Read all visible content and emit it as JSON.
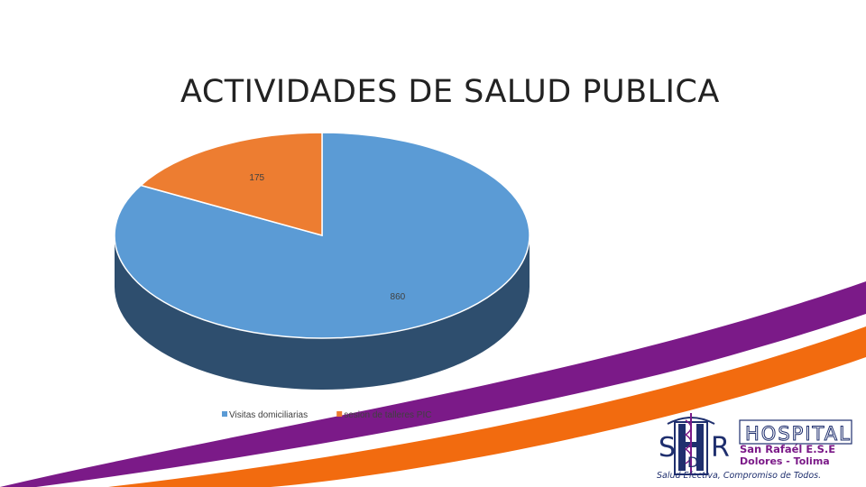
{
  "slide": {
    "title": "ACTIVIDADES DE SALUD PUBLICA"
  },
  "chart_data": {
    "type": "pie",
    "title": "ACTIVIDADES DE SALUD PUBLICA",
    "style": "3d",
    "categories": [
      "Visitas domiciliarias",
      "sesion de talleres PIC"
    ],
    "values": [
      860,
      175
    ],
    "colors": [
      "#5B9BD5",
      "#ED7D31"
    ],
    "side_colors": [
      "#2E4E6E",
      "#9A4C16"
    ],
    "data_labels": [
      "860",
      "175"
    ],
    "legend_position": "bottom"
  },
  "logo": {
    "initials_left": "S",
    "initials_mid": "D",
    "initials_right": "R",
    "name": "HOSPITAL",
    "subname": "San Rafaél E.S.E",
    "location": "Dolores - Tolima",
    "slogan": "Salud Efectiva, Compromiso de Todos.",
    "colors": {
      "purple": "#7B1A88",
      "orange": "#F26B0F",
      "navy": "#1F2F6E"
    }
  }
}
